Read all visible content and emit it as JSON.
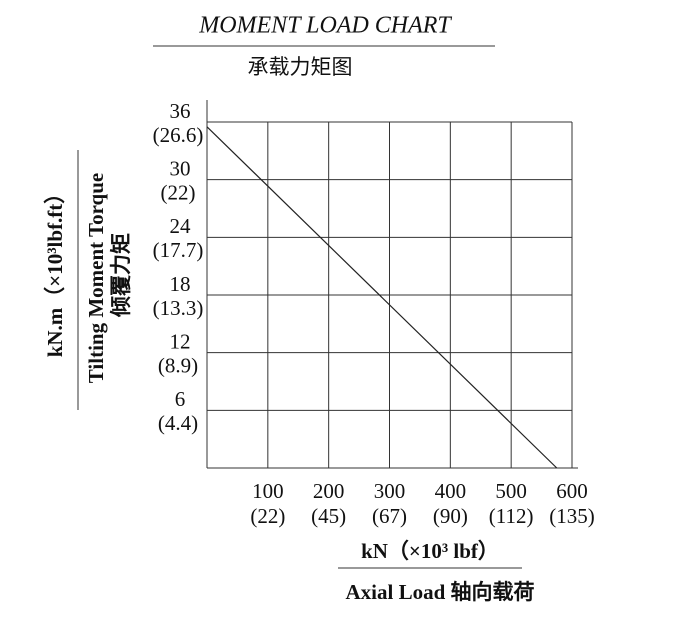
{
  "chart_data": {
    "type": "line",
    "title": "MOMENT LOAD CHART",
    "subtitle": "承载力矩图",
    "x_label": "kN（×10³ lbf）",
    "x_label_2": "Axial Load  轴向载荷",
    "y_label": "kN.m（×10³lbf.ft）",
    "y_label_2": "Tilting Moment Torque",
    "y_label_3": "倾覆力矩",
    "x": [
      0,
      575
    ],
    "values": [
      35.5,
      0
    ],
    "color": "#222222",
    "xlim": [
      0,
      600
    ],
    "ylim": [
      0,
      36
    ],
    "xticks": [
      100,
      200,
      300,
      400,
      500,
      600
    ],
    "xtick_labels_lbf": [
      "(22)",
      "(45)",
      "(67)",
      "(90)",
      "(112)",
      "(135)"
    ],
    "yticks": [
      6,
      12,
      18,
      24,
      30,
      36
    ],
    "ytick_labels_lbf": [
      "(4.4)",
      "(8.9)",
      "(13.3)",
      "(17.7)",
      "(22)",
      "(26.6)"
    ],
    "grid": true
  }
}
